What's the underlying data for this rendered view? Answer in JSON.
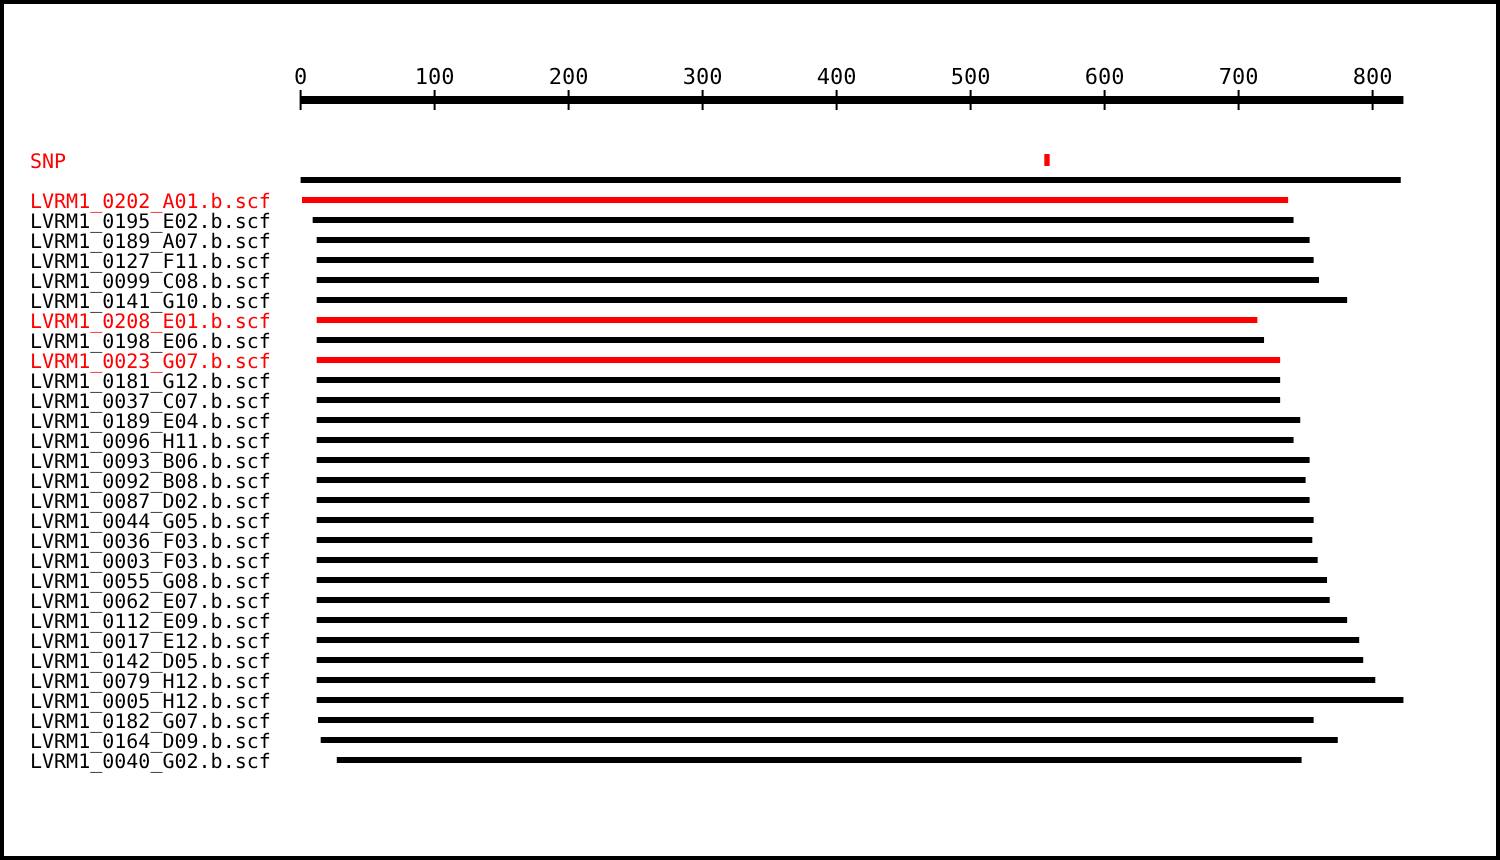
{
  "chart_data": {
    "type": "bar",
    "orientation": "horizontal",
    "categories": [
      "SNP",
      null,
      "LVRM1_0202_A01.b.scf",
      "LVRM1_0195_E02.b.scf",
      "LVRM1_0189_A07.b.scf",
      "LVRM1_0127_F11.b.scf",
      "LVRM1_0099_C08.b.scf",
      "LVRM1_0141_G10.b.scf",
      "LVRM1_0208_E01.b.scf",
      "LVRM1_0198_E06.b.scf",
      "LVRM1_0023_G07.b.scf",
      "LVRM1_0181_G12.b.scf",
      "LVRM1_0037_C07.b.scf",
      "LVRM1_0189_E04.b.scf",
      "LVRM1_0096_H11.b.scf",
      "LVRM1_0093_B06.b.scf",
      "LVRM1_0092_B08.b.scf",
      "LVRM1_0087_D02.b.scf",
      "LVRM1_0044_G05.b.scf",
      "LVRM1_0036_F03.b.scf",
      "LVRM1_0003_F03.b.scf",
      "LVRM1_0055_G08.b.scf",
      "LVRM1_0062_E07.b.scf",
      "LVRM1_0112_E09.b.scf",
      "LVRM1_0017_E12.b.scf",
      "LVRM1_0142_D05.b.scf",
      "LVRM1_0079_H12.b.scf",
      "LVRM1_0005_H12.b.scf",
      "LVRM1_0182_G07.b.scf",
      "LVRM1_0164_D09.b.scf",
      "LVRM1_0040_G02.b.scf"
    ],
    "base": [
      555,
      0,
      1,
      9,
      12,
      12,
      12,
      12,
      12,
      12,
      12,
      12,
      12,
      12,
      12,
      12,
      12,
      12,
      12,
      12,
      12,
      12,
      12,
      12,
      12,
      12,
      12,
      12,
      13,
      15,
      27
    ],
    "values": [
      4,
      821,
      736,
      732,
      741,
      744,
      748,
      769,
      702,
      707,
      719,
      719,
      719,
      734,
      729,
      741,
      738,
      741,
      744,
      743,
      747,
      754,
      756,
      769,
      778,
      781,
      790,
      811,
      743,
      759,
      720
    ],
    "colors": [
      "#ff0000",
      "#000000",
      "#ff0000",
      "#000000",
      "#000000",
      "#000000",
      "#000000",
      "#000000",
      "#ff0000",
      "#000000",
      "#ff0000",
      "#000000",
      "#000000",
      "#000000",
      "#000000",
      "#000000",
      "#000000",
      "#000000",
      "#000000",
      "#000000",
      "#000000",
      "#000000",
      "#000000",
      "#000000",
      "#000000",
      "#000000",
      "#000000",
      "#000000",
      "#000000",
      "#000000",
      "#000000"
    ],
    "xlim": [
      0,
      823
    ],
    "xticks": [
      0,
      100,
      200,
      300,
      400,
      500,
      600,
      700,
      800
    ],
    "grid": false
  }
}
